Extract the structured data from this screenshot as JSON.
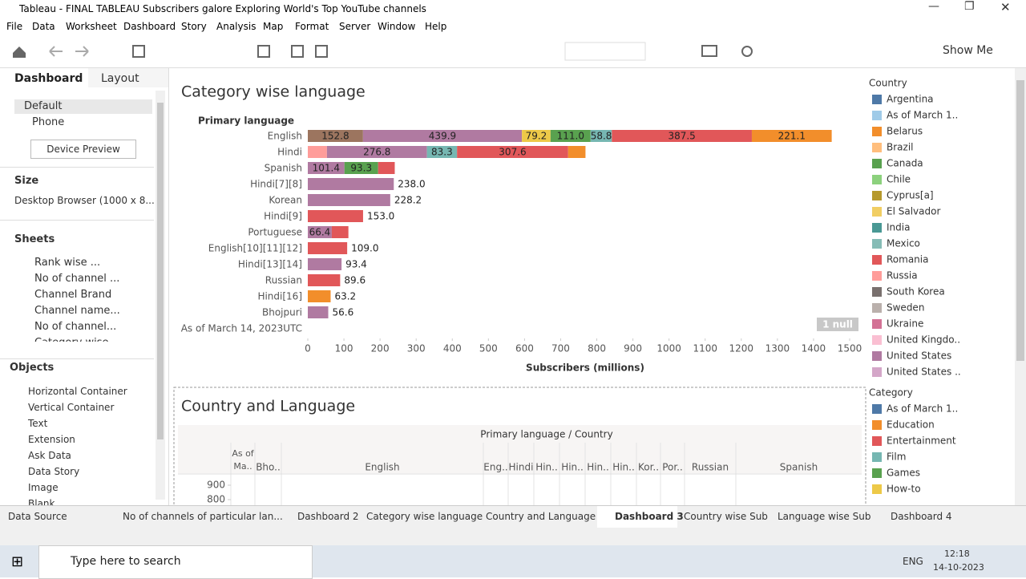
{
  "window": {
    "title": "Tableau - FINAL TABLEAU  Subscribers galore  Exploring World's Top YouTube channels"
  },
  "menu": [
    "File",
    "Data",
    "Worksheet",
    "Dashboard",
    "Story",
    "Analysis",
    "Map",
    "Format",
    "Server",
    "Window",
    "Help"
  ],
  "toolbar": {
    "show_me": "Show Me"
  },
  "side": {
    "tabs": [
      "Dashboard",
      "Layout"
    ],
    "devices": [
      "Default",
      "Phone"
    ],
    "device_preview": "Device Preview",
    "size_heading": "Size",
    "size_value": "Desktop Browser (1000 x 8...",
    "sheets_heading": "Sheets",
    "sheets": [
      "Rank wise ...",
      "No of channel ...",
      "Channel Brand",
      "Channel name...",
      "No of channel...",
      "Category wise..."
    ],
    "objects_heading": "Objects",
    "objects": [
      "Horizontal Container",
      "Vertical Container",
      "Text",
      "Extension",
      "Ask Data",
      "Data Story",
      "Image",
      "Blank"
    ]
  },
  "chart_data": {
    "type": "stacked-bar-horizontal",
    "title": "Category wise language",
    "y_label": "Primary language",
    "x_label": "Subscribers (millions)",
    "null_badge": "1 null",
    "rows": [
      {
        "category": "English",
        "segments": [
          {
            "value": 152.8,
            "label": "152.8",
            "color": "#9c755f"
          },
          {
            "value": 439.9,
            "label": "439.9",
            "color": "#b07aa1"
          },
          {
            "value": 79.2,
            "label": "79.2",
            "color": "#edc948"
          },
          {
            "value": 111.0,
            "label": "111.0",
            "color": "#59a14f"
          },
          {
            "value": 58.8,
            "label": "58.8",
            "color": "#76b7b2"
          },
          {
            "value": 387.5,
            "label": "387.5",
            "color": "#e15759"
          },
          {
            "value": 221.1,
            "label": "221.1",
            "color": "#f28e2b"
          }
        ]
      },
      {
        "category": "Hindi",
        "segments": [
          {
            "value": 53,
            "color": "#ff9d9a"
          },
          {
            "value": 276.8,
            "label": "276.8",
            "color": "#b07aa1"
          },
          {
            "value": 83.3,
            "label": "83.3",
            "color": "#76b7b2"
          },
          {
            "value": 307.6,
            "label": "307.6",
            "color": "#e15759"
          },
          {
            "value": 48,
            "color": "#f28e2b"
          }
        ]
      },
      {
        "category": "Spanish",
        "segments": [
          {
            "value": 101.4,
            "label": "101.4",
            "color": "#b07aa1"
          },
          {
            "value": 93.3,
            "label": "93.3",
            "color": "#59a14f"
          },
          {
            "value": 46,
            "color": "#e15759"
          }
        ]
      },
      {
        "category": "Hindi[7][8]",
        "segments": [
          {
            "value": 238.0,
            "label": "238.0",
            "color": "#b07aa1"
          }
        ]
      },
      {
        "category": "Korean",
        "segments": [
          {
            "value": 228.2,
            "label": "228.2",
            "color": "#b07aa1"
          }
        ]
      },
      {
        "category": "Hindi[9]",
        "segments": [
          {
            "value": 153.0,
            "label": "153.0",
            "color": "#e15759"
          }
        ]
      },
      {
        "category": "Portuguese",
        "segments": [
          {
            "value": 66.4,
            "label": "66.4",
            "color": "#b07aa1"
          },
          {
            "value": 46,
            "color": "#e15759"
          }
        ]
      },
      {
        "category": "English[10][11][12]",
        "segments": [
          {
            "value": 109.0,
            "label": "109.0",
            "color": "#e15759"
          }
        ]
      },
      {
        "category": "Hindi[13][14]",
        "segments": [
          {
            "value": 93.4,
            "label": "93.4",
            "color": "#b07aa1"
          }
        ]
      },
      {
        "category": "Russian",
        "segments": [
          {
            "value": 89.6,
            "label": "89.6",
            "color": "#e15759"
          }
        ]
      },
      {
        "category": "Hindi[16]",
        "segments": [
          {
            "value": 63.2,
            "label": "63.2",
            "color": "#f28e2b"
          }
        ]
      },
      {
        "category": "Bhojpuri",
        "segments": [
          {
            "value": 56.6,
            "label": "56.6",
            "color": "#b07aa1"
          }
        ]
      },
      {
        "category": "As of March 14, 2023UTC",
        "segments": []
      }
    ],
    "xlim": [
      0,
      1500
    ],
    "xticks": [
      0,
      100,
      200,
      300,
      400,
      500,
      600,
      700,
      800,
      900,
      1000,
      1100,
      1200,
      1300,
      1400,
      1500
    ]
  },
  "legends": [
    {
      "title": "Country",
      "items": [
        {
          "label": "Argentina",
          "color": "#4e79a7"
        },
        {
          "label": "As of March 1..",
          "color": "#a0cbe8"
        },
        {
          "label": "Belarus",
          "color": "#f28e2b"
        },
        {
          "label": "Brazil",
          "color": "#ffbe7d"
        },
        {
          "label": "Canada",
          "color": "#59a14f"
        },
        {
          "label": "Chile",
          "color": "#8cd17d"
        },
        {
          "label": "Cyprus[a]",
          "color": "#b6992d"
        },
        {
          "label": "El Salvador",
          "color": "#f1ce63"
        },
        {
          "label": "India",
          "color": "#499894"
        },
        {
          "label": "Mexico",
          "color": "#86bcb6"
        },
        {
          "label": "Romania",
          "color": "#e15759"
        },
        {
          "label": "Russia",
          "color": "#ff9d9a"
        },
        {
          "label": "South Korea",
          "color": "#79706e"
        },
        {
          "label": "Sweden",
          "color": "#bab0ac"
        },
        {
          "label": "Ukraine",
          "color": "#d37295"
        },
        {
          "label": "United Kingdo..",
          "color": "#fabfd2"
        },
        {
          "label": "United States",
          "color": "#b07aa1"
        },
        {
          "label": "United States ..",
          "color": "#d4a6c8"
        }
      ]
    },
    {
      "title": "Category",
      "items": [
        {
          "label": "As of March 1..",
          "color": "#4e79a7"
        },
        {
          "label": "Education",
          "color": "#f28e2b"
        },
        {
          "label": "Entertainment",
          "color": "#e15759"
        },
        {
          "label": "Film",
          "color": "#76b7b2"
        },
        {
          "label": "Games",
          "color": "#59a14f"
        },
        {
          "label": "How-to",
          "color": "#edc948"
        }
      ]
    }
  ],
  "chart2": {
    "title": "Country and Language",
    "header": "Primary language / Country",
    "columns": [
      "As of Ma..",
      "Bho..",
      "English",
      "Eng..",
      "Hindi",
      "Hin..",
      "Hin..",
      "Hin..",
      "Hin..",
      "Kor..",
      "Por..",
      "Russian",
      "Spanish"
    ],
    "yticks": [
      900,
      800
    ]
  },
  "tabs": [
    "Data Source",
    "No of channels of particular lan...",
    "Dashboard 2",
    "Category wise language",
    "Country and Language",
    "Dashboard 3",
    "Country wise Sub",
    "Language wise Sub",
    "Dashboard 4"
  ],
  "taskbar": {
    "search": "Type here to search",
    "lang": "ENG",
    "time": "12:18",
    "date": "14-10-2023"
  }
}
